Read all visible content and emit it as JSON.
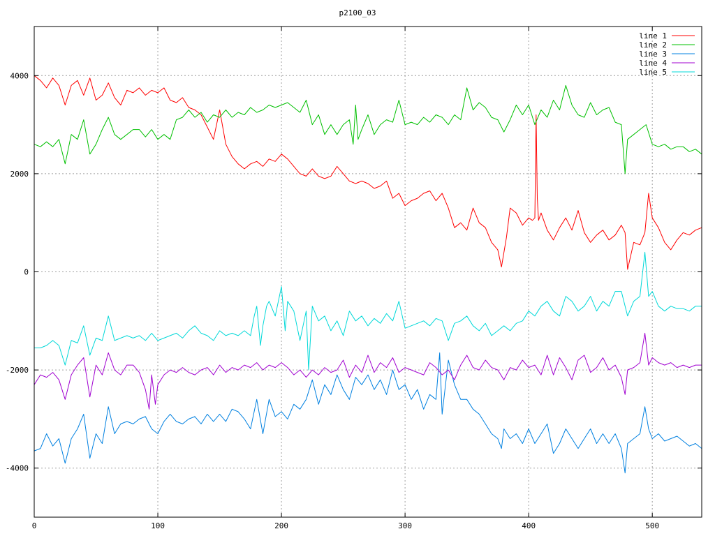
{
  "chart_data": {
    "type": "line",
    "title": "p2100_03",
    "xlabel": "",
    "ylabel": "",
    "xlim": [
      0,
      540
    ],
    "ylim": [
      -5000,
      5000
    ],
    "x_ticks": [
      0,
      100,
      200,
      300,
      400,
      500
    ],
    "y_ticks": [
      -4000,
      -2000,
      0,
      2000,
      4000
    ],
    "x_tick_labels": [
      "0",
      "100",
      "200",
      "300",
      "400",
      "500"
    ],
    "y_tick_labels": [
      "-4000",
      "-2000",
      "0",
      "2000",
      "4000"
    ],
    "grid": true,
    "legend_position": "top-right",
    "series": [
      {
        "name": "line 1",
        "color": "#ff0000",
        "x": [
          0,
          5,
          10,
          15,
          20,
          25,
          30,
          35,
          40,
          45,
          50,
          55,
          60,
          65,
          70,
          75,
          80,
          85,
          90,
          95,
          100,
          105,
          110,
          115,
          120,
          125,
          130,
          135,
          140,
          145,
          150,
          155,
          160,
          165,
          170,
          175,
          180,
          185,
          190,
          195,
          200,
          205,
          210,
          215,
          220,
          225,
          230,
          235,
          240,
          245,
          250,
          255,
          260,
          265,
          270,
          275,
          280,
          285,
          290,
          295,
          300,
          305,
          310,
          315,
          320,
          325,
          330,
          335,
          340,
          345,
          350,
          355,
          360,
          365,
          370,
          375,
          378,
          382,
          385,
          390,
          395,
          400,
          403,
          405,
          406,
          407,
          408,
          410,
          415,
          420,
          425,
          430,
          435,
          440,
          445,
          450,
          455,
          460,
          465,
          470,
          475,
          478,
          480,
          485,
          490,
          494,
          497,
          500,
          505,
          510,
          515,
          520,
          525,
          530,
          535,
          540
        ],
        "y": [
          4000,
          3900,
          3750,
          3950,
          3800,
          3400,
          3800,
          3900,
          3600,
          3950,
          3500,
          3600,
          3850,
          3550,
          3400,
          3700,
          3650,
          3750,
          3600,
          3700,
          3650,
          3750,
          3500,
          3450,
          3550,
          3350,
          3300,
          3200,
          2950,
          2700,
          3300,
          2600,
          2350,
          2200,
          2100,
          2200,
          2250,
          2150,
          2300,
          2250,
          2400,
          2300,
          2150,
          2000,
          1950,
          2100,
          1950,
          1900,
          1950,
          2150,
          2000,
          1850,
          1800,
          1850,
          1800,
          1700,
          1750,
          1850,
          1500,
          1600,
          1350,
          1450,
          1500,
          1600,
          1650,
          1450,
          1600,
          1300,
          900,
          1000,
          850,
          1300,
          1000,
          900,
          600,
          450,
          100,
          700,
          1300,
          1200,
          950,
          1100,
          1050,
          1100,
          3200,
          1500,
          1050,
          1200,
          850,
          650,
          900,
          1100,
          850,
          1250,
          800,
          600,
          750,
          850,
          650,
          750,
          950,
          800,
          50,
          600,
          550,
          800,
          1600,
          1100,
          900,
          600,
          450,
          650,
          800,
          750,
          850,
          900
        ]
      },
      {
        "name": "line 2",
        "color": "#00c000",
        "x": [
          0,
          5,
          10,
          15,
          20,
          25,
          30,
          35,
          40,
          45,
          50,
          55,
          60,
          65,
          70,
          75,
          80,
          85,
          90,
          95,
          100,
          105,
          110,
          115,
          120,
          125,
          130,
          135,
          140,
          145,
          150,
          155,
          160,
          165,
          170,
          175,
          180,
          185,
          190,
          195,
          200,
          205,
          210,
          215,
          220,
          225,
          230,
          235,
          240,
          245,
          250,
          255,
          258,
          260,
          262,
          265,
          270,
          275,
          280,
          285,
          290,
          295,
          300,
          305,
          310,
          315,
          320,
          325,
          330,
          335,
          340,
          345,
          350,
          355,
          360,
          365,
          370,
          375,
          380,
          385,
          390,
          395,
          400,
          405,
          410,
          415,
          420,
          425,
          430,
          435,
          440,
          445,
          450,
          455,
          460,
          465,
          470,
          475,
          478,
          480,
          485,
          490,
          495,
          500,
          505,
          510,
          515,
          520,
          525,
          530,
          535,
          540
        ],
        "y": [
          2600,
          2550,
          2650,
          2550,
          2700,
          2200,
          2800,
          2700,
          3100,
          2400,
          2600,
          2900,
          3150,
          2800,
          2700,
          2800,
          2900,
          2900,
          2750,
          2900,
          2700,
          2800,
          2700,
          3100,
          3150,
          3300,
          3150,
          3250,
          3050,
          3200,
          3150,
          3300,
          3150,
          3250,
          3200,
          3350,
          3250,
          3300,
          3400,
          3350,
          3400,
          3450,
          3350,
          3250,
          3500,
          3000,
          3200,
          2800,
          3000,
          2800,
          3000,
          3100,
          2600,
          3400,
          2700,
          2900,
          3200,
          2800,
          3000,
          3100,
          3050,
          3500,
          3000,
          3050,
          3000,
          3150,
          3050,
          3200,
          3150,
          3000,
          3200,
          3100,
          3750,
          3300,
          3450,
          3350,
          3150,
          3100,
          2850,
          3100,
          3400,
          3200,
          3400,
          3000,
          3300,
          3150,
          3500,
          3300,
          3800,
          3400,
          3200,
          3150,
          3450,
          3200,
          3300,
          3350,
          3050,
          3000,
          2000,
          2700,
          2800,
          2900,
          3000,
          2600,
          2550,
          2600,
          2500,
          2550,
          2550,
          2450,
          2500,
          2400
        ]
      },
      {
        "name": "line 3",
        "color": "#0080e0",
        "x": [
          0,
          5,
          10,
          15,
          20,
          25,
          30,
          35,
          40,
          45,
          50,
          55,
          60,
          65,
          70,
          75,
          80,
          85,
          90,
          95,
          100,
          105,
          110,
          115,
          120,
          125,
          130,
          135,
          140,
          145,
          150,
          155,
          160,
          165,
          170,
          175,
          180,
          185,
          190,
          195,
          200,
          205,
          210,
          215,
          220,
          225,
          230,
          235,
          240,
          245,
          250,
          255,
          260,
          265,
          270,
          275,
          280,
          285,
          290,
          295,
          300,
          305,
          310,
          315,
          320,
          325,
          328,
          330,
          335,
          340,
          345,
          350,
          355,
          360,
          365,
          370,
          375,
          378,
          380,
          385,
          390,
          395,
          400,
          405,
          410,
          415,
          420,
          425,
          430,
          435,
          440,
          445,
          450,
          455,
          460,
          465,
          470,
          475,
          478,
          480,
          485,
          490,
          494,
          497,
          500,
          505,
          510,
          515,
          520,
          525,
          530,
          535,
          540
        ],
        "y": [
          -3650,
          -3600,
          -3300,
          -3550,
          -3400,
          -3900,
          -3400,
          -3200,
          -2900,
          -3800,
          -3300,
          -3500,
          -2750,
          -3300,
          -3100,
          -3050,
          -3100,
          -3000,
          -2950,
          -3200,
          -3300,
          -3050,
          -2900,
          -3050,
          -3100,
          -3000,
          -2950,
          -3100,
          -2900,
          -3050,
          -2900,
          -3050,
          -2800,
          -2850,
          -3000,
          -3200,
          -2600,
          -3300,
          -2600,
          -2950,
          -2850,
          -3000,
          -2700,
          -2800,
          -2600,
          -2200,
          -2700,
          -2300,
          -2500,
          -2100,
          -2400,
          -2600,
          -2150,
          -2300,
          -2100,
          -2400,
          -2200,
          -2500,
          -2000,
          -2400,
          -2300,
          -2600,
          -2400,
          -2800,
          -2500,
          -2600,
          -1650,
          -2900,
          -1800,
          -2300,
          -2600,
          -2600,
          -2800,
          -2900,
          -3100,
          -3300,
          -3400,
          -3600,
          -3200,
          -3400,
          -3300,
          -3500,
          -3200,
          -3500,
          -3300,
          -3100,
          -3700,
          -3500,
          -3200,
          -3400,
          -3600,
          -3400,
          -3200,
          -3500,
          -3300,
          -3500,
          -3300,
          -3600,
          -4100,
          -3500,
          -3400,
          -3300,
          -2750,
          -3200,
          -3400,
          -3300,
          -3450,
          -3400,
          -3350,
          -3450,
          -3550,
          -3500,
          -3600
        ]
      },
      {
        "name": "line 4",
        "color": "#a000d0",
        "x": [
          0,
          5,
          10,
          15,
          20,
          25,
          30,
          35,
          40,
          45,
          50,
          55,
          60,
          65,
          70,
          75,
          80,
          85,
          90,
          93,
          95,
          98,
          100,
          105,
          110,
          115,
          120,
          125,
          130,
          135,
          140,
          145,
          150,
          155,
          160,
          165,
          170,
          175,
          180,
          185,
          190,
          195,
          200,
          205,
          210,
          215,
          220,
          225,
          230,
          235,
          240,
          245,
          250,
          255,
          260,
          265,
          270,
          275,
          280,
          285,
          290,
          295,
          300,
          305,
          310,
          315,
          320,
          325,
          330,
          335,
          340,
          345,
          350,
          355,
          360,
          365,
          370,
          375,
          380,
          385,
          390,
          395,
          400,
          405,
          410,
          415,
          420,
          425,
          430,
          435,
          440,
          445,
          450,
          455,
          460,
          465,
          470,
          475,
          478,
          480,
          485,
          490,
          494,
          497,
          500,
          505,
          510,
          515,
          520,
          525,
          530,
          535,
          540
        ],
        "y": [
          -2300,
          -2100,
          -2150,
          -2050,
          -2200,
          -2600,
          -2100,
          -1900,
          -1750,
          -2550,
          -1900,
          -2100,
          -1650,
          -2000,
          -2100,
          -1900,
          -1900,
          -2050,
          -2400,
          -2800,
          -2100,
          -2700,
          -2300,
          -2100,
          -2000,
          -2050,
          -1950,
          -2050,
          -2100,
          -2000,
          -1950,
          -2100,
          -1900,
          -2050,
          -1950,
          -2000,
          -1900,
          -1950,
          -1850,
          -2000,
          -1900,
          -1950,
          -1850,
          -1950,
          -2100,
          -2000,
          -2150,
          -2000,
          -2100,
          -1950,
          -2050,
          -2000,
          -1800,
          -2150,
          -1900,
          -2050,
          -1700,
          -2050,
          -1850,
          -1950,
          -1750,
          -2050,
          -1950,
          -2000,
          -2050,
          -2100,
          -1850,
          -1950,
          -2100,
          -2000,
          -2200,
          -1900,
          -1700,
          -1950,
          -2000,
          -1800,
          -1950,
          -2000,
          -2200,
          -1950,
          -2000,
          -1800,
          -1950,
          -1900,
          -2100,
          -1700,
          -2100,
          -1750,
          -1950,
          -2200,
          -1800,
          -1700,
          -2050,
          -1950,
          -1750,
          -2000,
          -1900,
          -2150,
          -2500,
          -2000,
          -1950,
          -1850,
          -1250,
          -1900,
          -1750,
          -1850,
          -1900,
          -1850,
          -1950,
          -1900,
          -1950,
          -1900,
          -1900
        ]
      },
      {
        "name": "line 5",
        "color": "#00d8d8",
        "x": [
          0,
          5,
          10,
          15,
          20,
          25,
          30,
          35,
          40,
          45,
          50,
          55,
          60,
          65,
          70,
          75,
          80,
          85,
          90,
          95,
          100,
          105,
          110,
          115,
          120,
          125,
          130,
          135,
          140,
          145,
          150,
          155,
          160,
          165,
          170,
          175,
          178,
          180,
          183,
          185,
          188,
          190,
          195,
          200,
          203,
          205,
          210,
          215,
          220,
          222,
          225,
          230,
          235,
          240,
          245,
          250,
          255,
          260,
          265,
          270,
          275,
          280,
          285,
          290,
          295,
          300,
          305,
          310,
          315,
          320,
          325,
          330,
          335,
          340,
          345,
          350,
          355,
          360,
          365,
          370,
          375,
          380,
          385,
          390,
          395,
          400,
          405,
          410,
          415,
          420,
          425,
          430,
          435,
          440,
          445,
          450,
          455,
          460,
          465,
          470,
          475,
          480,
          485,
          490,
          494,
          497,
          500,
          505,
          510,
          515,
          520,
          525,
          530,
          535,
          540
        ],
        "y": [
          -1550,
          -1550,
          -1500,
          -1400,
          -1500,
          -1900,
          -1400,
          -1450,
          -1100,
          -1700,
          -1350,
          -1400,
          -900,
          -1400,
          -1350,
          -1300,
          -1350,
          -1300,
          -1400,
          -1250,
          -1400,
          -1350,
          -1300,
          -1250,
          -1350,
          -1200,
          -1100,
          -1250,
          -1300,
          -1400,
          -1200,
          -1300,
          -1250,
          -1300,
          -1200,
          -1300,
          -900,
          -700,
          -1500,
          -1100,
          -700,
          -600,
          -900,
          -300,
          -1200,
          -600,
          -800,
          -1400,
          -800,
          -2000,
          -700,
          -1000,
          -900,
          -1200,
          -1000,
          -1300,
          -800,
          -1000,
          -900,
          -1100,
          -950,
          -1050,
          -850,
          -1000,
          -600,
          -1150,
          -1100,
          -1050,
          -1000,
          -1100,
          -950,
          -1000,
          -1400,
          -1050,
          -1000,
          -900,
          -1100,
          -1200,
          -1050,
          -1300,
          -1200,
          -1100,
          -1200,
          -1050,
          -1000,
          -800,
          -900,
          -700,
          -600,
          -800,
          -900,
          -500,
          -600,
          -800,
          -700,
          -500,
          -800,
          -600,
          -700,
          -400,
          -400,
          -900,
          -600,
          -500,
          400,
          -500,
          -400,
          -700,
          -800,
          -700,
          -750,
          -750,
          -800,
          -700,
          -700
        ]
      }
    ]
  }
}
